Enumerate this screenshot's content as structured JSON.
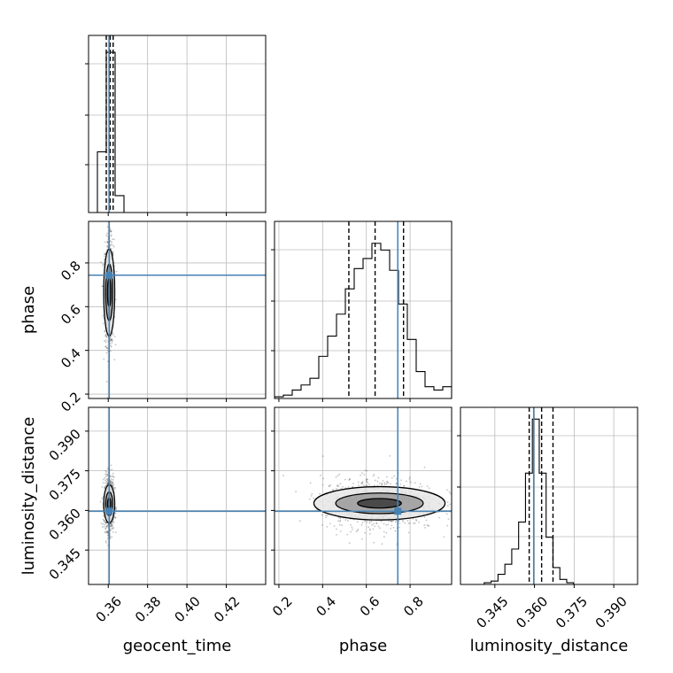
{
  "chart_data": {
    "type": "corner",
    "parameters": [
      "geocent_time",
      "phase",
      "luminosity_distance"
    ],
    "ranges": {
      "geocent_time": [
        0.35,
        0.44
      ],
      "phase": [
        0.18,
        0.99
      ],
      "luminosity_distance": [
        0.332,
        0.399
      ]
    },
    "ticks": {
      "geocent_time": {
        "values": [
          0.36,
          0.38,
          0.4,
          0.42
        ],
        "labels": [
          "0.36",
          "0.38",
          "0.40",
          "0.42"
        ]
      },
      "phase": {
        "values": [
          0.2,
          0.4,
          0.6,
          0.8
        ],
        "labels": [
          "0.2",
          "0.4",
          "0.6",
          "0.8"
        ]
      },
      "luminosity_distance": {
        "values": [
          0.345,
          0.36,
          0.375,
          0.39
        ],
        "labels": [
          "0.345",
          "0.360",
          "0.375",
          "0.390"
        ]
      }
    },
    "truths": {
      "geocent_time": 0.3605,
      "phase": 0.7438,
      "luminosity_distance": 0.3597
    },
    "quantiles": {
      "geocent_time": [
        0.359,
        0.361,
        0.3625
      ],
      "phase": [
        0.52,
        0.64,
        0.77
      ],
      "luminosity_distance": [
        0.358,
        0.3627,
        0.367
      ]
    },
    "histograms": [
      {
        "parameter": "geocent_time",
        "bin_edges": [
          0.35,
          0.3545,
          0.359,
          0.3635,
          0.368
        ],
        "counts": [
          0.0,
          0.36,
          0.95,
          0.1,
          0.0
        ],
        "count_ylim": [
          0,
          1.0
        ]
      },
      {
        "parameter": "phase",
        "bin_edges": [
          0.18,
          0.2205,
          0.261,
          0.3015,
          0.342,
          0.3825,
          0.423,
          0.4635,
          0.504,
          0.5445,
          0.585,
          0.6255,
          0.666,
          0.7065,
          0.747,
          0.7875,
          0.828,
          0.8685,
          0.909,
          0.9495,
          0.99
        ],
        "counts": [
          0.01,
          0.02,
          0.05,
          0.08,
          0.12,
          0.25,
          0.37,
          0.5,
          0.65,
          0.77,
          0.83,
          0.92,
          0.88,
          0.76,
          0.56,
          0.35,
          0.16,
          0.07,
          0.05,
          0.07
        ],
        "count_ylim": [
          0,
          1.0
        ]
      },
      {
        "parameter": "luminosity_distance",
        "bin_edges": [
          0.341,
          0.3436,
          0.3462,
          0.3488,
          0.3514,
          0.354,
          0.3566,
          0.3592,
          0.3618,
          0.3644,
          0.367,
          0.3696,
          0.3722,
          0.3748,
          0.3774,
          0.38
        ],
        "counts": [
          0.01,
          0.02,
          0.06,
          0.12,
          0.21,
          0.37,
          0.66,
          0.98,
          0.66,
          0.28,
          0.1,
          0.03,
          0.01,
          0.0,
          0.0
        ],
        "count_ylim": [
          0,
          1.0
        ]
      }
    ],
    "density_panels": [
      {
        "x": "geocent_time",
        "y": "phase",
        "center": [
          0.3605,
          0.665
        ],
        "spread": [
          0.0012,
          0.12
        ],
        "contour_levels": [
          {
            "rx": 0.0009,
            "ry": 0.065
          },
          {
            "rx": 0.0018,
            "ry": 0.13
          },
          {
            "rx": 0.0028,
            "ry": 0.2
          }
        ]
      },
      {
        "x": "geocent_time",
        "y": "luminosity_distance",
        "center": [
          0.3605,
          0.3625
        ],
        "spread": [
          0.0012,
          0.005
        ],
        "contour_levels": [
          {
            "rx": 0.0009,
            "ry": 0.0022
          },
          {
            "rx": 0.0018,
            "ry": 0.0045
          },
          {
            "rx": 0.0028,
            "ry": 0.0072
          }
        ]
      },
      {
        "x": "phase",
        "y": "luminosity_distance",
        "center": [
          0.66,
          0.3627
        ],
        "spread": [
          0.13,
          0.005
        ],
        "contour_levels": [
          {
            "rx": 0.1,
            "ry": 0.0018
          },
          {
            "rx": 0.2,
            "ry": 0.0039
          },
          {
            "rx": 0.3,
            "ry": 0.0063
          }
        ]
      }
    ],
    "grid": true,
    "colors": {
      "truth": "#4682b4",
      "hist": "#000000",
      "grid": "#bbbbbb",
      "points": "#555555"
    }
  }
}
